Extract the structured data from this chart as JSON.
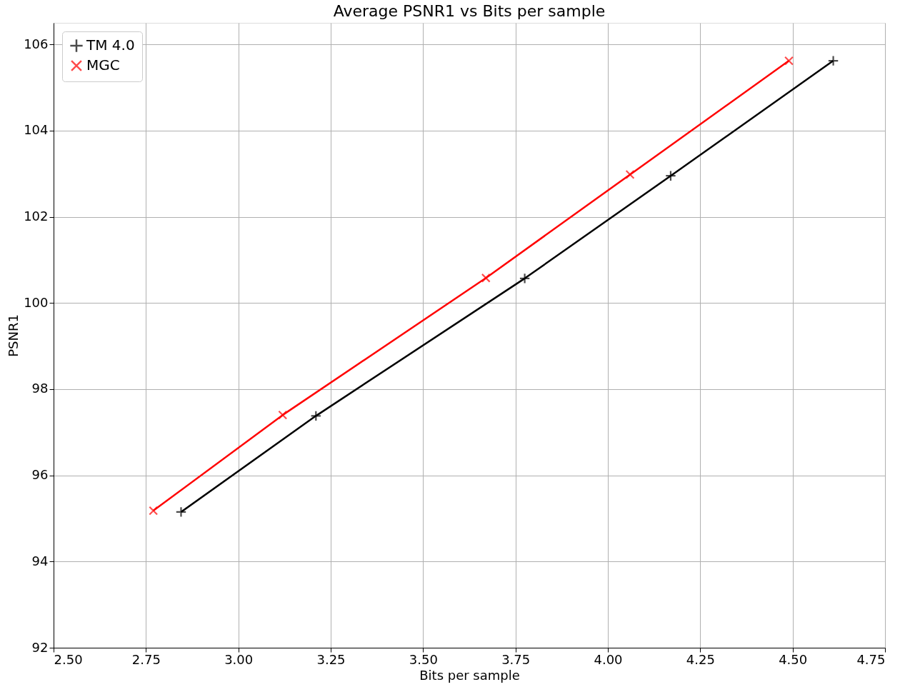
{
  "chart_data": {
    "type": "line",
    "title": "Average PSNR1 vs Bits per sample",
    "xlabel": "Bits per sample",
    "ylabel": "PSNR1",
    "xlim": [
      2.5,
      4.75
    ],
    "xticks": [
      {
        "value": 2.5,
        "label": "2.50"
      },
      {
        "value": 2.75,
        "label": "2.75"
      },
      {
        "value": 3.0,
        "label": "3.00"
      },
      {
        "value": 3.25,
        "label": "3.25"
      },
      {
        "value": 3.5,
        "label": "3.50"
      },
      {
        "value": 3.75,
        "label": "3.75"
      },
      {
        "value": 4.0,
        "label": "4.00"
      },
      {
        "value": 4.25,
        "label": "4.25"
      },
      {
        "value": 4.5,
        "label": "4.50"
      },
      {
        "value": 4.75,
        "label": "4.75"
      }
    ],
    "ylim": [
      92,
      106.5
    ],
    "yticks": [
      92,
      94,
      96,
      98,
      100,
      102,
      104,
      106
    ],
    "grid": true,
    "legend": "top left",
    "line_style": "solid",
    "series": [
      {
        "name": "TM 4.0",
        "color": "#000000",
        "marker": "cross",
        "x": [
          2.845,
          3.21,
          3.775,
          4.17,
          4.61
        ],
        "values": [
          95.15,
          97.38,
          100.57,
          102.95,
          105.62
        ]
      },
      {
        "name": "MGC",
        "color": "#ff0000",
        "marker": "x",
        "x": [
          2.77,
          3.12,
          3.67,
          4.06,
          4.49
        ],
        "values": [
          95.18,
          97.4,
          100.58,
          102.98,
          105.62
        ]
      }
    ]
  }
}
